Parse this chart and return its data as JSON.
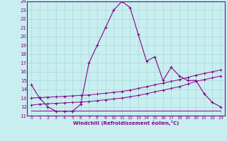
{
  "xlabel": "Windchill (Refroidissement éolien,°C)",
  "bg_color": "#c8eef0",
  "line_color": "#880088",
  "grid_color": "#aad8d8",
  "xlim": [
    -0.5,
    23.5
  ],
  "ylim": [
    11,
    24
  ],
  "xticks": [
    0,
    1,
    2,
    3,
    4,
    5,
    6,
    7,
    8,
    9,
    10,
    11,
    12,
    13,
    14,
    15,
    16,
    17,
    18,
    19,
    20,
    21,
    22,
    23
  ],
  "yticks": [
    11,
    12,
    13,
    14,
    15,
    16,
    17,
    18,
    19,
    20,
    21,
    22,
    23,
    24
  ],
  "line1_x": [
    0,
    1,
    2,
    3,
    4,
    5,
    6,
    7,
    8,
    9,
    10,
    11,
    12,
    13,
    14,
    15,
    16,
    17,
    18,
    19,
    20,
    21,
    22,
    23
  ],
  "line1_y": [
    14.5,
    13.0,
    12.0,
    11.5,
    11.5,
    11.5,
    12.3,
    17.0,
    19.0,
    21.0,
    23.0,
    24.0,
    23.3,
    20.2,
    17.2,
    17.7,
    15.0,
    16.5,
    15.5,
    15.0,
    15.0,
    13.5,
    12.5,
    12.0
  ],
  "line2_x": [
    0,
    1,
    2,
    3,
    4,
    5,
    6,
    7,
    8,
    9,
    10,
    11,
    12,
    13,
    14,
    15,
    16,
    17,
    18,
    19,
    20,
    21,
    22,
    23
  ],
  "line2_y": [
    12.2,
    12.3,
    12.35,
    12.4,
    12.45,
    12.5,
    12.55,
    12.6,
    12.7,
    12.8,
    12.9,
    13.0,
    13.15,
    13.3,
    13.5,
    13.7,
    13.9,
    14.1,
    14.3,
    14.6,
    14.9,
    15.1,
    15.3,
    15.5
  ],
  "line3_x": [
    0,
    1,
    2,
    3,
    4,
    5,
    6,
    7,
    8,
    9,
    10,
    11,
    12,
    13,
    14,
    15,
    16,
    17,
    18,
    19,
    20,
    21,
    22,
    23
  ],
  "line3_y": [
    13.0,
    13.05,
    13.1,
    13.15,
    13.2,
    13.25,
    13.3,
    13.35,
    13.45,
    13.55,
    13.65,
    13.75,
    13.9,
    14.1,
    14.3,
    14.5,
    14.7,
    14.9,
    15.1,
    15.35,
    15.6,
    15.8,
    16.0,
    16.2
  ],
  "line4_x": [
    0,
    1,
    2,
    3,
    4,
    5,
    6,
    7,
    8,
    9,
    10,
    11,
    12,
    13,
    14,
    15,
    16,
    17,
    18,
    19,
    20,
    21,
    22,
    23
  ],
  "line4_y": [
    11.6,
    11.6,
    11.6,
    11.6,
    11.6,
    11.6,
    11.6,
    11.6,
    11.6,
    11.6,
    11.6,
    11.6,
    11.6,
    11.6,
    11.6,
    11.6,
    11.6,
    11.6,
    11.6,
    11.6,
    11.6,
    11.6,
    11.6,
    11.6
  ]
}
